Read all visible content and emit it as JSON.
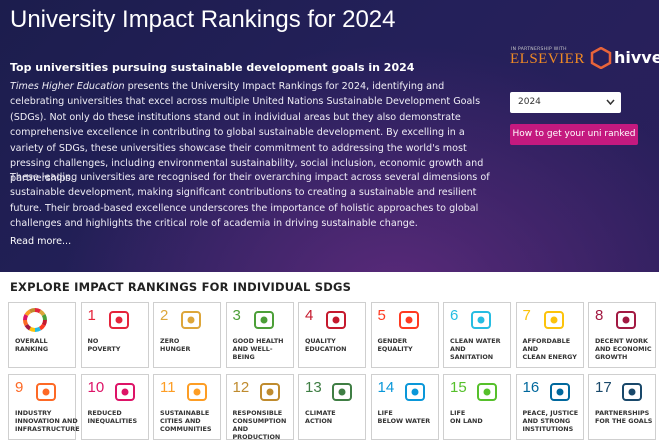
{
  "header": {
    "title": "University Impact Rankings for 2024",
    "subtitle": "Top universities pursuing sustainable development goals in 2024",
    "paragraphs": [
      {
        "italic": "Times Higher Education",
        "text": " presents the University Impact Rankings for 2024, identifying and celebrating universities that excel across multiple United Nations Sustainable Development Goals (SDGs). Not only do these institutions stand out in individual areas but they also demonstrate comprehensive excellence in contributing to global sustainable development. By excelling in a variety of SDGs, these universities showcase their commitment to addressing the world's most pressing challenges, including environmental sustainability, social inclusion, economic growth and partnerships."
      },
      {
        "text": "These leading universities are recognised for their overarching impact across several dimensions of sustainable development, making significant contributions to creating a sustainable and resilient future. Their broad-based excellence underscores the importance of holistic approaches to global challenges and highlights the critical role of academia in driving sustainable change."
      }
    ],
    "read_more": "Read more...",
    "partner_note": "IN PARTNERSHIP WITH",
    "partners": [
      "ELSEVIER",
      "hivve"
    ],
    "year_select": "2024",
    "button": "How to get your uni ranked"
  },
  "section": {
    "title": "EXPLORE IMPACT RANKINGS FOR INDIVIDUAL SDGS",
    "tiles": [
      {
        "label": [
          "OVERALL",
          "RANKING"
        ]
      },
      {
        "number": "1",
        "label": [
          "NO",
          "POVERTY"
        ],
        "color": "#e5243b"
      },
      {
        "number": "2",
        "label": [
          "ZERO",
          "HUNGER"
        ],
        "color": "#dda63a"
      },
      {
        "number": "3",
        "label": [
          "GOOD HEALTH",
          "AND WELL-BEING"
        ],
        "color": "#4c9f38"
      },
      {
        "number": "4",
        "label": [
          "QUALITY",
          "EDUCATION"
        ],
        "color": "#c5192d"
      },
      {
        "number": "5",
        "label": [
          "GENDER",
          "EQUALITY"
        ],
        "color": "#ff3a21"
      },
      {
        "number": "6",
        "label": [
          "CLEAN WATER",
          "AND SANITATION"
        ],
        "color": "#26bde2"
      },
      {
        "number": "7",
        "label": [
          "AFFORDABLE AND",
          "CLEAN ENERGY"
        ],
        "color": "#fcc30b"
      },
      {
        "number": "8",
        "label": [
          "DECENT WORK",
          "AND ECONOMIC",
          "GROWTH"
        ],
        "color": "#a21942"
      },
      {
        "number": "9",
        "label": [
          "INDUSTRY",
          "INNOVATION AND",
          "INFRASTRUCTURE"
        ],
        "color": "#fd6925"
      },
      {
        "number": "10",
        "label": [
          "REDUCED",
          "INEQUALITIES"
        ],
        "color": "#dd1367"
      },
      {
        "number": "11",
        "label": [
          "SUSTAINABLE",
          "CITIES AND",
          "COMMUNITIES"
        ],
        "color": "#fd9d24"
      },
      {
        "number": "12",
        "label": [
          "RESPONSIBLE",
          "CONSUMPTION",
          "AND PRODUCTION"
        ],
        "color": "#bf8b2e"
      },
      {
        "number": "13",
        "label": [
          "CLIMATE",
          "ACTION"
        ],
        "color": "#3f7e44"
      },
      {
        "number": "14",
        "label": [
          "LIFE",
          "BELOW WATER"
        ],
        "color": "#0a97d9"
      },
      {
        "number": "15",
        "label": [
          "LIFE",
          "ON LAND"
        ],
        "color": "#56c02b"
      },
      {
        "number": "16",
        "label": [
          "PEACE, JUSTICE",
          "AND STRONG",
          "INSTITUTIONS"
        ],
        "color": "#00689d"
      },
      {
        "number": "17",
        "label": [
          "PARTNERSHIPS",
          "FOR THE GOALS"
        ],
        "color": "#19486a"
      }
    ]
  }
}
